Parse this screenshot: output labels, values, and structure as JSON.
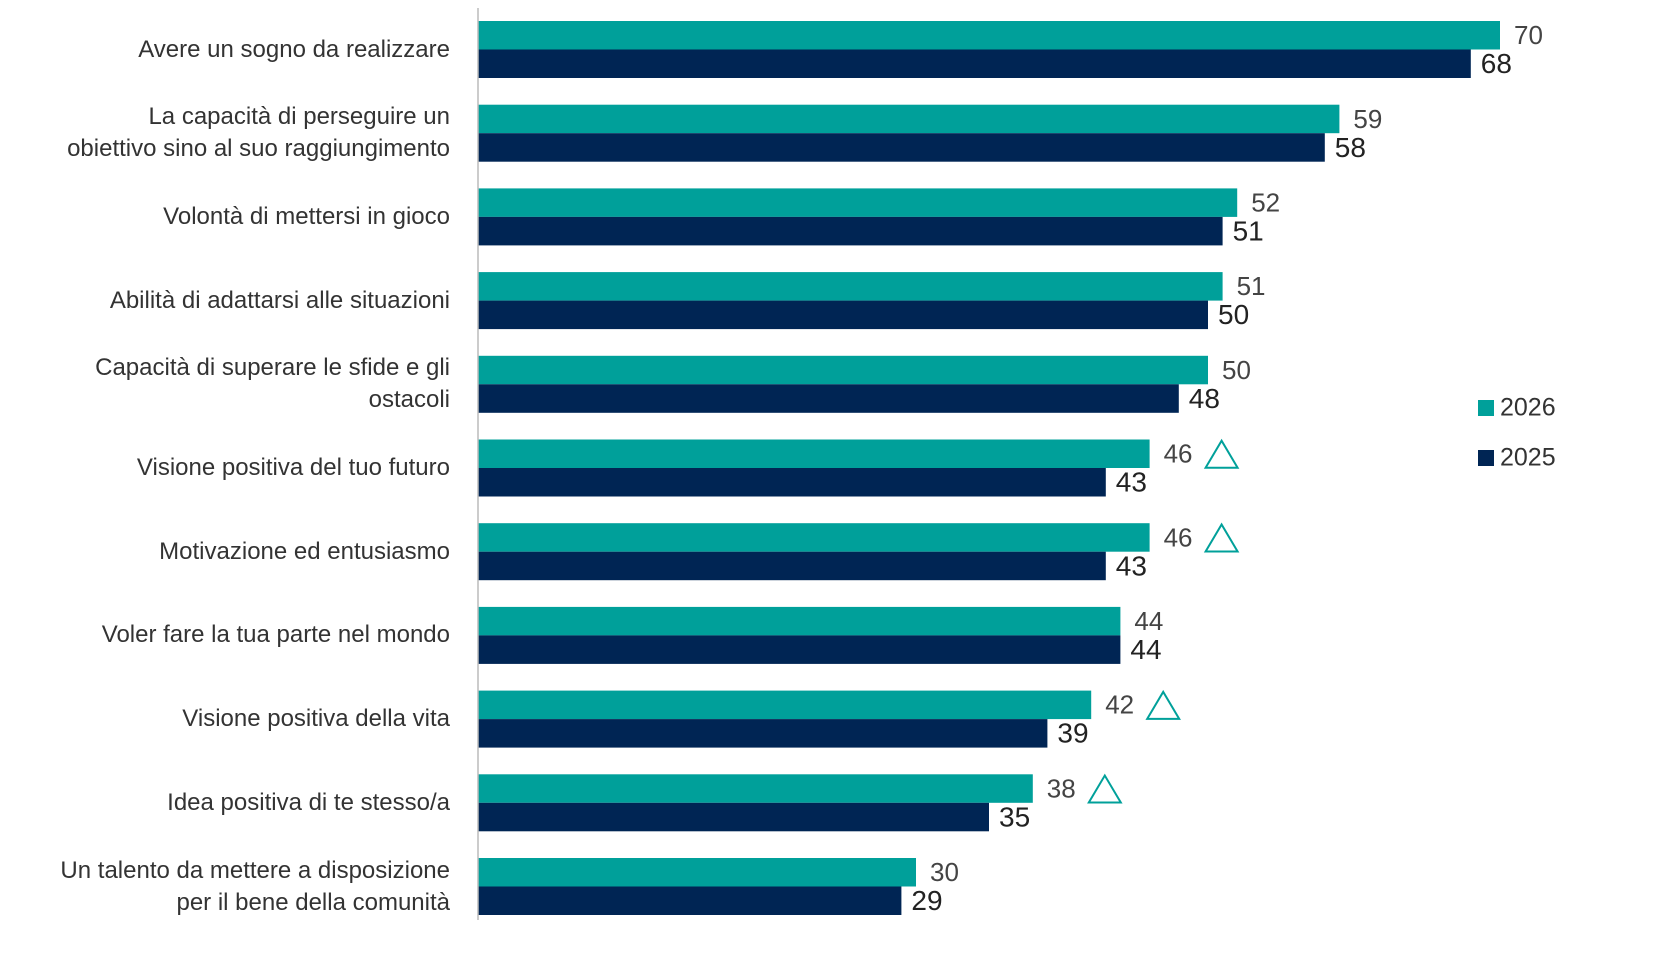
{
  "chart_data": {
    "type": "bar",
    "orientation": "horizontal",
    "categories": [
      "Avere un sogno da realizzare",
      "La capacità di perseguire un\nobiettivo sino al suo raggiungimento",
      "Volontà di mettersi in gioco",
      "Abilità di adattarsi alle situazioni",
      "Capacità di superare le sfide e gli\nostacoli",
      "Visione positiva del tuo futuro",
      "Motivazione ed entusiasmo",
      "Voler fare la tua parte nel mondo",
      "Visione positiva della vita",
      "Idea positiva di te stesso/a",
      "Un talento da mettere a disposizione\nper il bene della comunità"
    ],
    "series": [
      {
        "name": "2026",
        "color": "#00a09a",
        "values": [
          70,
          59,
          52,
          51,
          50,
          46,
          46,
          44,
          42,
          38,
          30
        ],
        "up_marker": [
          false,
          false,
          false,
          false,
          false,
          true,
          true,
          false,
          true,
          true,
          false
        ]
      },
      {
        "name": "2025",
        "color": "#002554",
        "values": [
          68,
          58,
          51,
          50,
          48,
          43,
          43,
          44,
          39,
          35,
          29
        ]
      }
    ],
    "xlim": [
      0,
      70
    ],
    "legend": "right"
  }
}
